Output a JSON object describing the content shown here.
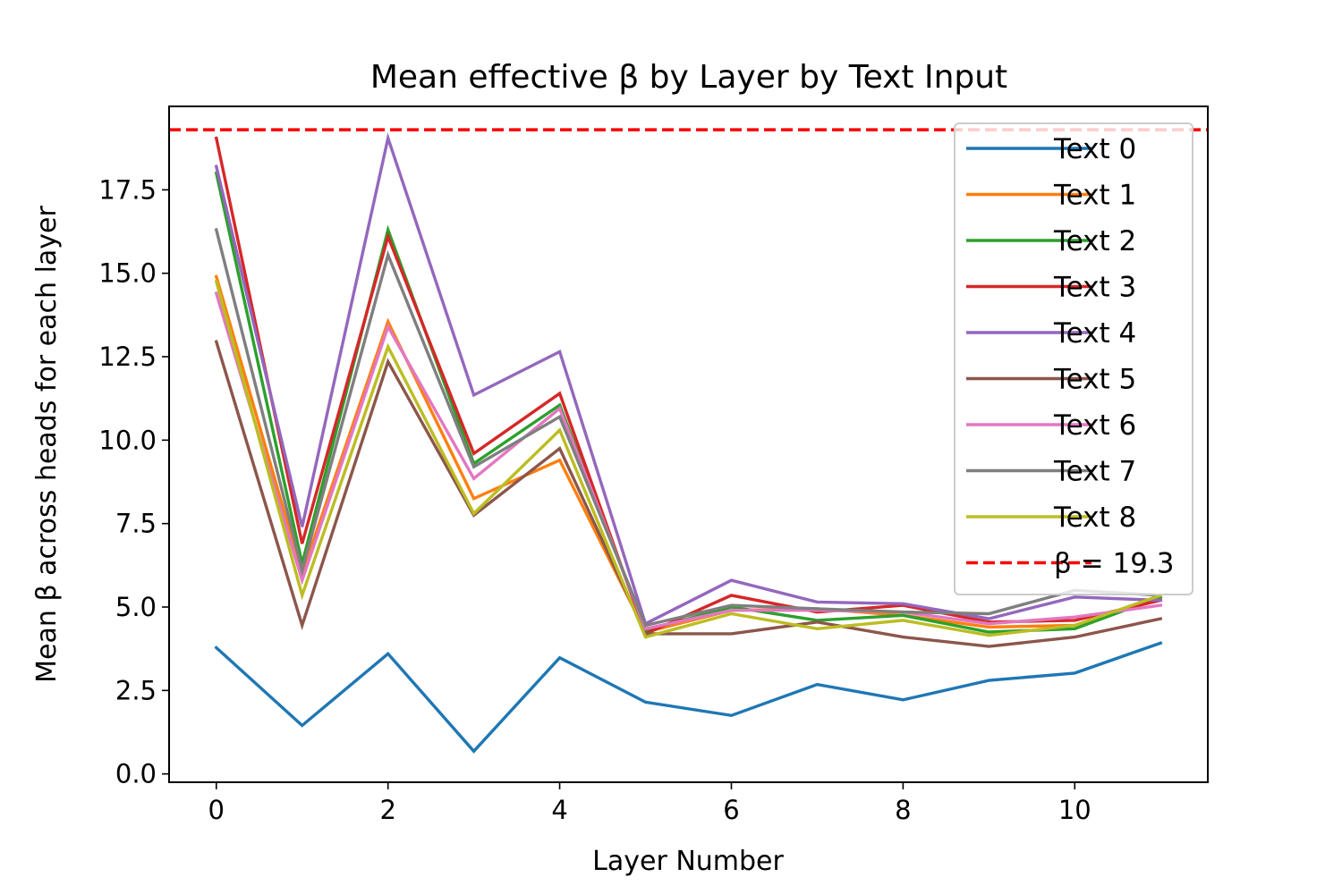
{
  "chart_data": {
    "type": "line",
    "title": "Mean effective β by Layer by Text Input",
    "xlabel": "Layer Number",
    "ylabel": "Mean β across heads for each layer",
    "xlim": [
      -0.55,
      11.55
    ],
    "ylim": [
      -0.25,
      20.0
    ],
    "xticks": [
      "0",
      "2",
      "4",
      "6",
      "8",
      "10"
    ],
    "yticks": [
      "0.0",
      "2.5",
      "5.0",
      "7.5",
      "10.0",
      "12.5",
      "15.0",
      "17.5"
    ],
    "grid": false,
    "legend_position": "top-right",
    "x": [
      0,
      1,
      2,
      3,
      4,
      5,
      6,
      7,
      8,
      9,
      10,
      11
    ],
    "series": [
      {
        "name": "Text 0",
        "color": "#1f77b4",
        "values": [
          3.78,
          1.45,
          3.6,
          0.68,
          3.48,
          2.15,
          1.75,
          2.68,
          2.22,
          2.8,
          3.02,
          3.92
        ]
      },
      {
        "name": "Text 1",
        "color": "#ff7f0e",
        "values": [
          14.9,
          6.0,
          13.55,
          8.25,
          9.4,
          4.25,
          4.9,
          4.95,
          4.75,
          4.4,
          4.45,
          5.25
        ]
      },
      {
        "name": "Text 2",
        "color": "#2ca02c",
        "values": [
          18.0,
          6.3,
          16.3,
          9.3,
          11.05,
          4.3,
          5.0,
          4.6,
          4.75,
          4.25,
          4.35,
          5.3
        ]
      },
      {
        "name": "Text 3",
        "color": "#d62728",
        "values": [
          19.05,
          6.9,
          16.1,
          9.6,
          11.4,
          4.2,
          5.35,
          4.85,
          5.05,
          4.55,
          4.6,
          5.2
        ]
      },
      {
        "name": "Text 4",
        "color": "#9467bd",
        "values": [
          18.2,
          7.4,
          19.05,
          11.35,
          12.65,
          4.5,
          5.8,
          5.15,
          5.1,
          4.65,
          5.3,
          5.2
        ]
      },
      {
        "name": "Text 5",
        "color": "#8c564b",
        "values": [
          12.95,
          4.45,
          12.35,
          7.75,
          9.75,
          4.2,
          4.2,
          4.55,
          4.1,
          3.82,
          4.1,
          4.65
        ]
      },
      {
        "name": "Text 6",
        "color": "#e377c2",
        "values": [
          14.4,
          5.8,
          13.4,
          8.85,
          10.95,
          4.35,
          4.9,
          4.9,
          4.85,
          4.5,
          4.7,
          5.05
        ]
      },
      {
        "name": "Text 7",
        "color": "#7f7f7f",
        "values": [
          16.3,
          6.1,
          15.55,
          9.2,
          10.7,
          4.45,
          5.05,
          4.95,
          4.85,
          4.8,
          5.5,
          5.35
        ]
      },
      {
        "name": "Text 8",
        "color": "#bcbd22",
        "values": [
          14.75,
          5.35,
          12.8,
          7.8,
          10.3,
          4.1,
          4.8,
          4.35,
          4.6,
          4.15,
          4.45,
          5.35
        ]
      }
    ],
    "reference_line": {
      "label": "β = 19.3",
      "y": 19.3,
      "color": "#ff0000",
      "style": "dashed"
    }
  }
}
